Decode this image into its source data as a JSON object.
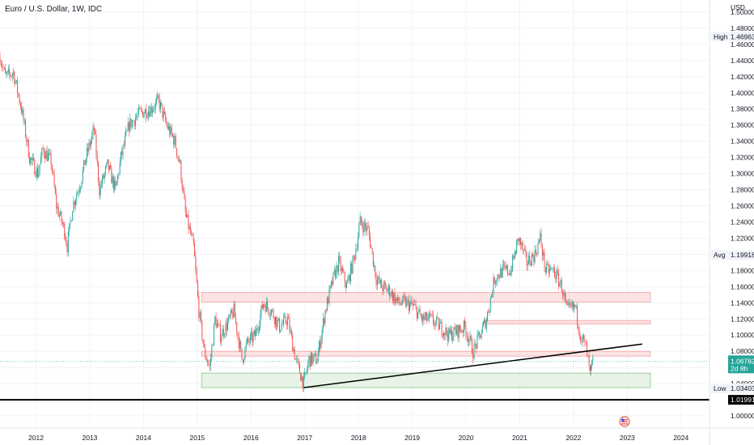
{
  "chart_data": {
    "type": "candlestick",
    "title": "Euro / U.S. Dollar, 1W, IDC",
    "currency": "USD",
    "yticks": [
      "1.50000",
      "1.48000",
      "1.46000",
      "1.44000",
      "1.42000",
      "1.40000",
      "1.38000",
      "1.36000",
      "1.34000",
      "1.32000",
      "1.30000",
      "1.28000",
      "1.26000",
      "1.24000",
      "1.22000",
      "1.20000",
      "1.18000",
      "1.16000",
      "1.14000",
      "1.12000",
      "1.10000",
      "1.08000",
      "1.06000",
      "1.04000",
      "1.02000",
      "1.00000"
    ],
    "ylim": [
      0.985,
      1.515
    ],
    "xticks": [
      "2012",
      "2013",
      "2014",
      "2015",
      "2016",
      "2017",
      "2018",
      "2019",
      "2020",
      "2021",
      "2022",
      "2023",
      "2024"
    ],
    "xlim": [
      2011.35,
      2024.55
    ],
    "series": [
      {
        "values": [
          [
            2011.35,
            1.445
          ],
          [
            2011.45,
            1.42
          ],
          [
            2011.6,
            1.425
          ],
          [
            2011.75,
            1.38
          ],
          [
            2011.9,
            1.32
          ],
          [
            2012.05,
            1.3
          ],
          [
            2012.15,
            1.33
          ],
          [
            2012.3,
            1.315
          ],
          [
            2012.4,
            1.26
          ],
          [
            2012.55,
            1.23
          ],
          [
            2012.6,
            1.21
          ],
          [
            2012.7,
            1.26
          ],
          [
            2012.85,
            1.29
          ],
          [
            2012.95,
            1.32
          ],
          [
            2013.1,
            1.355
          ],
          [
            2013.2,
            1.28
          ],
          [
            2013.35,
            1.31
          ],
          [
            2013.5,
            1.28
          ],
          [
            2013.6,
            1.32
          ],
          [
            2013.75,
            1.36
          ],
          [
            2013.95,
            1.375
          ],
          [
            2014.15,
            1.38
          ],
          [
            2014.3,
            1.39
          ],
          [
            2014.45,
            1.36
          ],
          [
            2014.6,
            1.34
          ],
          [
            2014.7,
            1.31
          ],
          [
            2014.8,
            1.25
          ],
          [
            2014.95,
            1.21
          ],
          [
            2015.05,
            1.13
          ],
          [
            2015.15,
            1.08
          ],
          [
            2015.25,
            1.06
          ],
          [
            2015.35,
            1.12
          ],
          [
            2015.45,
            1.1
          ],
          [
            2015.55,
            1.11
          ],
          [
            2015.7,
            1.13
          ],
          [
            2015.85,
            1.07
          ],
          [
            2015.95,
            1.09
          ],
          [
            2016.1,
            1.1
          ],
          [
            2016.25,
            1.14
          ],
          [
            2016.4,
            1.13
          ],
          [
            2016.55,
            1.11
          ],
          [
            2016.7,
            1.12
          ],
          [
            2016.85,
            1.07
          ],
          [
            2017.0,
            1.04
          ],
          [
            2017.1,
            1.07
          ],
          [
            2017.25,
            1.07
          ],
          [
            2017.4,
            1.13
          ],
          [
            2017.55,
            1.17
          ],
          [
            2017.65,
            1.19
          ],
          [
            2017.8,
            1.16
          ],
          [
            2017.95,
            1.2
          ],
          [
            2018.05,
            1.24
          ],
          [
            2018.2,
            1.23
          ],
          [
            2018.35,
            1.17
          ],
          [
            2018.45,
            1.16
          ],
          [
            2018.6,
            1.155
          ],
          [
            2018.75,
            1.14
          ],
          [
            2018.9,
            1.14
          ],
          [
            2019.05,
            1.135
          ],
          [
            2019.2,
            1.12
          ],
          [
            2019.35,
            1.12
          ],
          [
            2019.55,
            1.11
          ],
          [
            2019.7,
            1.1
          ],
          [
            2019.85,
            1.105
          ],
          [
            2020.0,
            1.11
          ],
          [
            2020.15,
            1.08
          ],
          [
            2020.25,
            1.095
          ],
          [
            2020.4,
            1.12
          ],
          [
            2020.55,
            1.17
          ],
          [
            2020.7,
            1.18
          ],
          [
            2020.85,
            1.18
          ],
          [
            2021.0,
            1.22
          ],
          [
            2021.15,
            1.19
          ],
          [
            2021.3,
            1.2
          ],
          [
            2021.4,
            1.22
          ],
          [
            2021.5,
            1.18
          ],
          [
            2021.65,
            1.18
          ],
          [
            2021.8,
            1.16
          ],
          [
            2021.9,
            1.13
          ],
          [
            2022.05,
            1.135
          ],
          [
            2022.15,
            1.1
          ],
          [
            2022.25,
            1.085
          ],
          [
            2022.33,
            1.05
          ],
          [
            2022.38,
            1.068
          ]
        ]
      }
    ],
    "zones": [
      {
        "kind": "resistance",
        "from": 2015.1,
        "to": 2023.45,
        "top": 1.153,
        "bottom": 1.141
      },
      {
        "kind": "resistance",
        "from": 2020.35,
        "to": 2023.45,
        "top": 1.118,
        "bottom": 1.114
      },
      {
        "kind": "resistance",
        "from": 2015.1,
        "to": 2023.45,
        "top": 1.08,
        "bottom": 1.074
      },
      {
        "kind": "support",
        "from": 2015.1,
        "to": 2023.45,
        "top": 1.053,
        "bottom": 1.035
      }
    ],
    "trendline": {
      "from": [
        2017.0,
        1.035
      ],
      "to": [
        2023.3,
        1.089
      ]
    },
    "support_line": 1.01991,
    "tags": {
      "high": {
        "label": "High",
        "value": "1.46963",
        "price": 1.46963
      },
      "avg": {
        "label": "Avg",
        "value": "1.19918",
        "price": 1.19918
      },
      "current": {
        "value": "1.06782",
        "countdown": "2d 8h",
        "price": 1.06782
      },
      "low": {
        "label": "Low",
        "value": "1.03403",
        "price": 1.03403
      },
      "support": {
        "value": "1.01991",
        "price": 1.01991
      }
    },
    "colors": {
      "up": "#26a69a",
      "down": "#ef5350",
      "resistance_fill": "#fde3e3",
      "resistance_border": "#f2a1a1",
      "support_fill": "#e6f3e6",
      "support_border": "#8cc58c"
    }
  }
}
